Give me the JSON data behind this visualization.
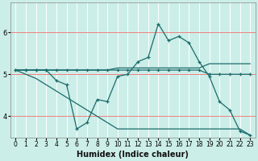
{
  "xlabel": "Humidex (Indice chaleur)",
  "bg_color": "#cceee8",
  "grid_color": "#f5a0a0",
  "line_color": "#1a6b6b",
  "xlim": [
    -0.5,
    23.5
  ],
  "ylim": [
    3.5,
    6.7
  ],
  "xticks": [
    0,
    1,
    2,
    3,
    4,
    5,
    6,
    7,
    8,
    9,
    10,
    11,
    12,
    13,
    14,
    15,
    16,
    17,
    18,
    19,
    20,
    21,
    22,
    23
  ],
  "yticks": [
    4,
    5,
    6
  ],
  "series_marked": [
    [
      5.1,
      5.1,
      5.1,
      5.1,
      5.1,
      5.1,
      5.1,
      5.1,
      5.1,
      5.1,
      5.1,
      5.1,
      5.1,
      5.1,
      5.1,
      5.1,
      5.1,
      5.1,
      5.1,
      5.0,
      5.0,
      5.0,
      5.0,
      5.0
    ],
    [
      5.1,
      5.1,
      5.1,
      5.1,
      4.85,
      4.75,
      3.7,
      3.85,
      4.4,
      4.35,
      4.95,
      5.0,
      5.3,
      5.4,
      6.2,
      5.8,
      5.9,
      5.75,
      5.3,
      4.95,
      4.35,
      4.15,
      3.65,
      3.55
    ]
  ],
  "series_plain": [
    [
      5.1,
      5.1,
      5.1,
      5.1,
      5.1,
      5.1,
      5.1,
      5.1,
      5.1,
      5.1,
      5.15,
      5.15,
      5.15,
      5.15,
      5.15,
      5.15,
      5.15,
      5.15,
      5.15,
      5.25,
      5.25,
      5.25,
      5.25,
      5.25
    ],
    [
      5.1,
      5.0,
      4.9,
      4.75,
      4.6,
      4.45,
      4.3,
      4.15,
      4.0,
      3.85,
      3.7,
      3.7,
      3.7,
      3.7,
      3.7,
      3.7,
      3.7,
      3.7,
      3.7,
      3.7,
      3.7,
      3.7,
      3.7,
      3.55
    ]
  ]
}
